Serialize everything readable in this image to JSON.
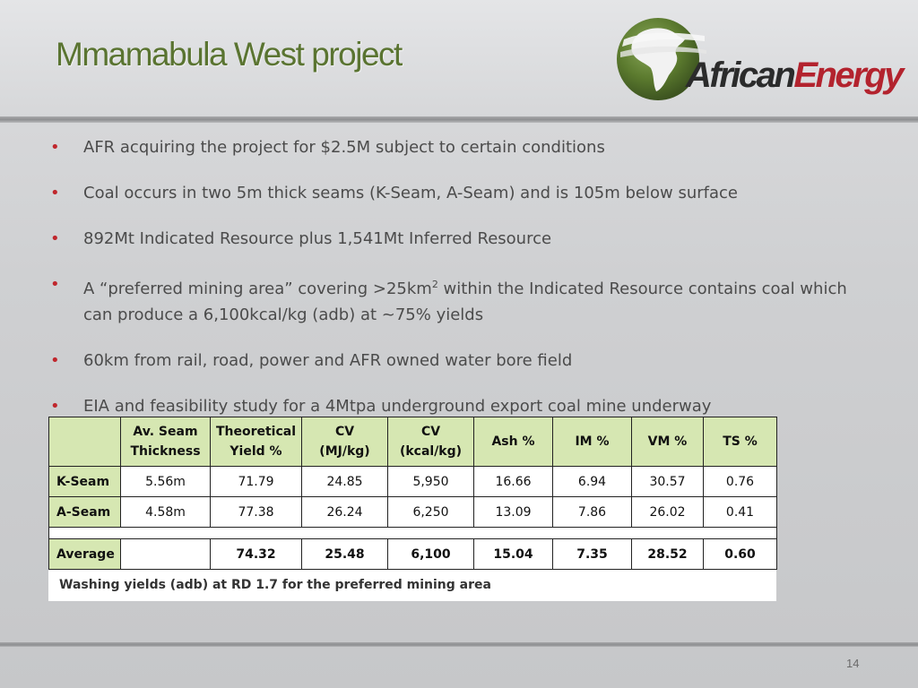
{
  "slide": {
    "title": "Mmamabula West project",
    "page_number": "14"
  },
  "logo": {
    "word_part1": "African",
    "word_part2": "Energy",
    "icon": "africa-globe-icon",
    "colors": {
      "green": "#5b7a2e",
      "dark": "#2b2b2b",
      "red": "#b3232e"
    }
  },
  "bullets": [
    {
      "text": "AFR acquiring the project for $2.5M subject to certain conditions"
    },
    {
      "text": "Coal occurs in two 5m thick seams (K-Seam, A-Seam) and is 105m below surface"
    },
    {
      "text": "892Mt Indicated Resource plus 1,541Mt Inferred Resource"
    },
    {
      "text_before_sup": "A “preferred mining area”  covering >25km",
      "sup": "2",
      "text_after_sup": " within the Indicated Resource contains coal which can produce a 6,100kcal/kg (adb) at ~75% yields"
    },
    {
      "text": "60km from rail, road, power and AFR owned water bore field"
    },
    {
      "text": "EIA and feasibility study for a 4Mtpa underground export coal mine underway"
    }
  ],
  "bullet_marker": "•",
  "table": {
    "headers": [
      {
        "line1": "",
        "line2": ""
      },
      {
        "line1": "Av. Seam",
        "line2": "Thickness"
      },
      {
        "line1": "Theoretical",
        "line2": "Yield %"
      },
      {
        "line1": "CV",
        "line2": "(MJ/kg)"
      },
      {
        "line1": "CV",
        "line2": "(kcal/kg)"
      },
      {
        "line1": "Ash %",
        "line2": ""
      },
      {
        "line1": "IM %",
        "line2": ""
      },
      {
        "line1": "VM %",
        "line2": ""
      },
      {
        "line1": "TS %",
        "line2": ""
      }
    ],
    "rows": [
      [
        "K-Seam",
        "5.56m",
        "71.79",
        "24.85",
        "5,950",
        "16.66",
        "6.94",
        "30.57",
        "0.76"
      ],
      [
        "A-Seam",
        "4.58m",
        "77.38",
        "26.24",
        "6,250",
        "13.09",
        "7.86",
        "26.02",
        "0.41"
      ]
    ],
    "average": [
      "Average",
      "",
      "74.32",
      "25.48",
      "6,100",
      "15.04",
      "7.35",
      "28.52",
      "0.60"
    ],
    "note": "Washing yields (adb) at RD 1.7 for the preferred mining area",
    "colors": {
      "header_bg": "#d6e7b2",
      "border": "#222222"
    }
  },
  "colors": {
    "title": "#5a7431",
    "bullet_dot": "#c0272d",
    "body_text": "#4b4b4b"
  }
}
